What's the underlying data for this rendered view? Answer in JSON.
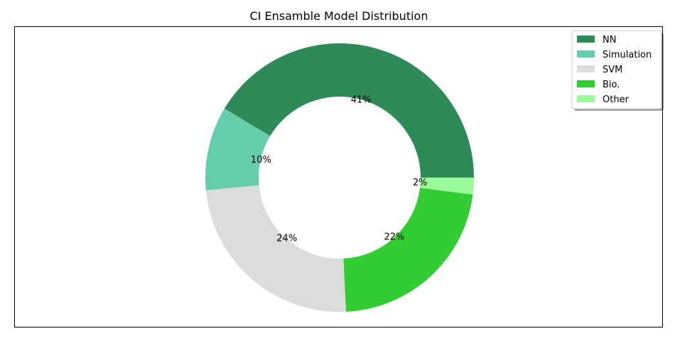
{
  "chart_data": {
    "type": "pie",
    "variant": "donut",
    "title": "CI Ensamble Model Distribution",
    "legend_position": "top-right",
    "slices": [
      {
        "label": "NN",
        "value": 41,
        "pct_label": "41%",
        "color": "#2e8b57"
      },
      {
        "label": "Simulation",
        "value": 10,
        "pct_label": "10%",
        "color": "#66cdaa"
      },
      {
        "label": "SVM",
        "value": 24,
        "pct_label": "24%",
        "color": "#dcdcdc"
      },
      {
        "label": "Bio.",
        "value": 22,
        "pct_label": "22%",
        "color": "#32cd32"
      },
      {
        "label": "Other",
        "value": 2,
        "pct_label": "2%",
        "color": "#98fb98"
      }
    ]
  }
}
